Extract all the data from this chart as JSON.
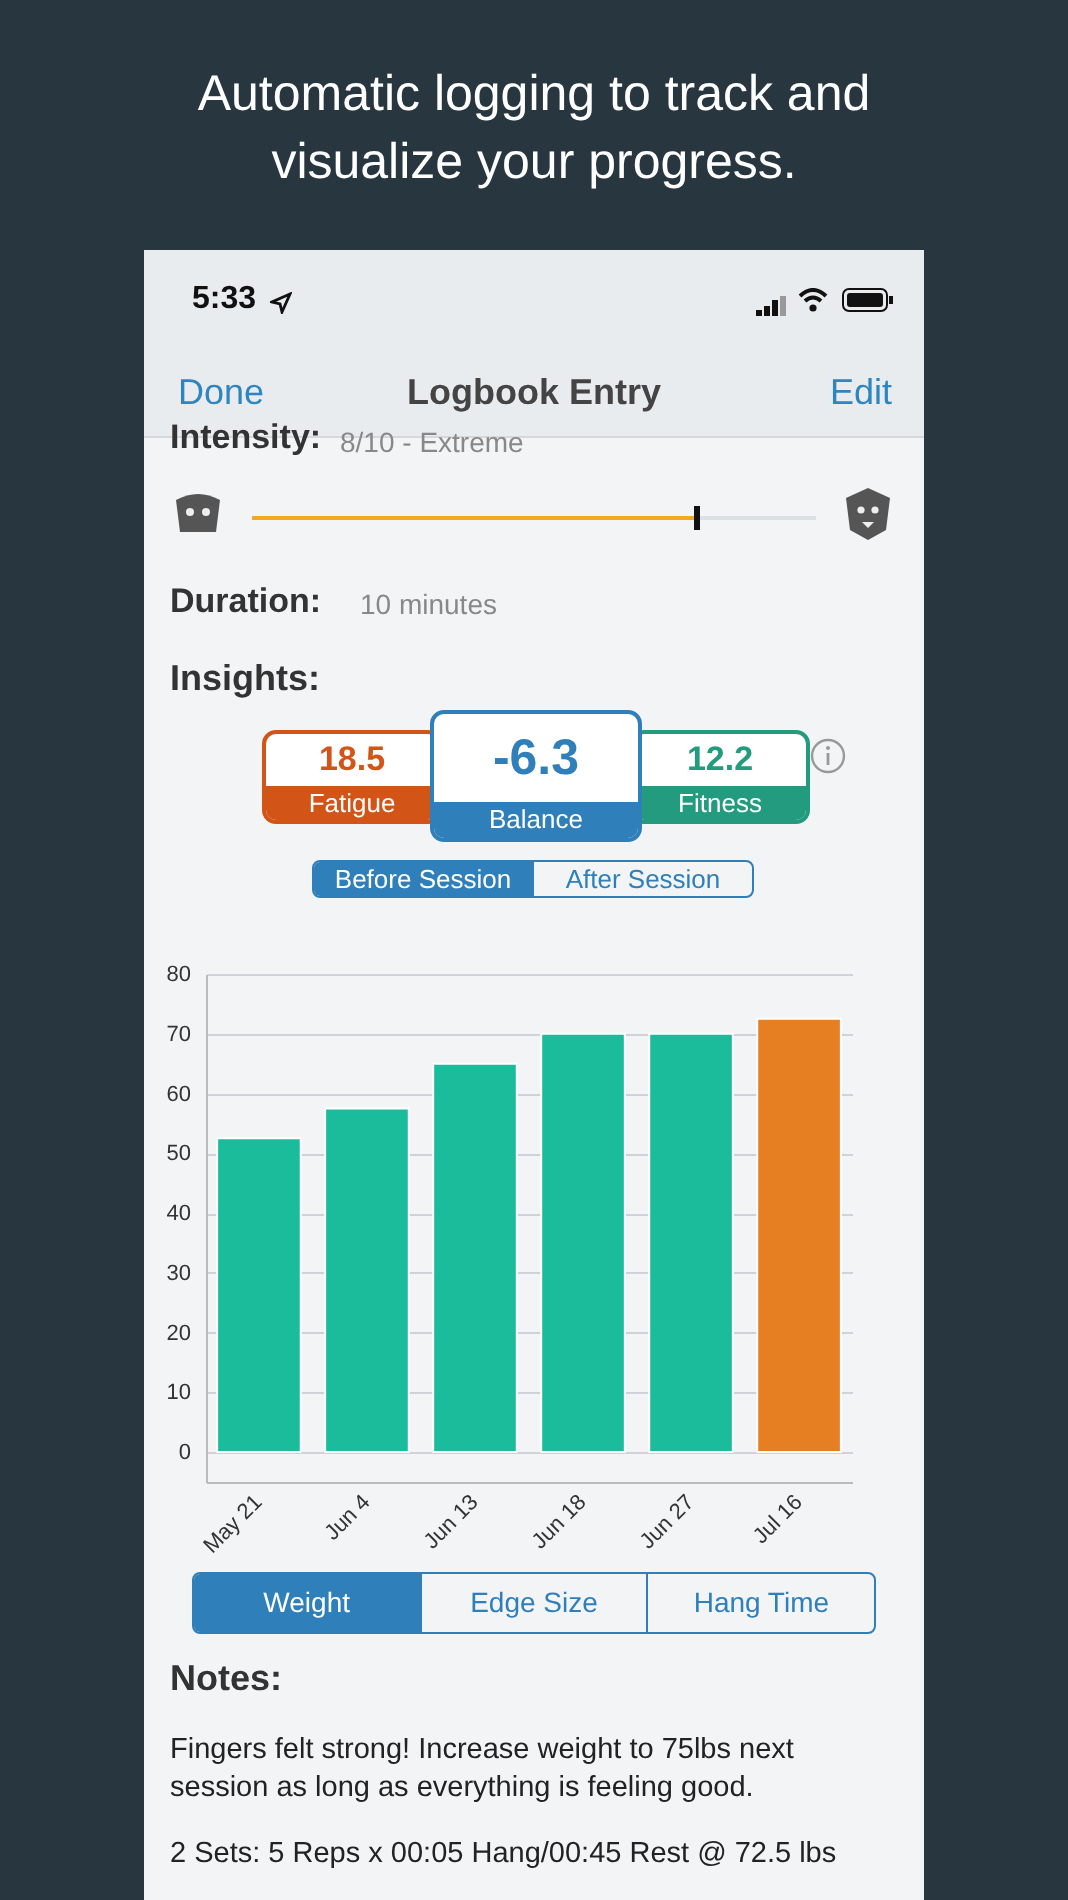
{
  "chart_data": {
    "type": "bar",
    "title": "Automatic logging to track and visualize your progress.",
    "categories": [
      "May 21",
      "Jun 4",
      "Jun 13",
      "Jun 18",
      "Jun 27",
      "Jul 16"
    ],
    "values": [
      52.5,
      57.5,
      65,
      70,
      70,
      72.5
    ],
    "colors": [
      "#1abc9c",
      "#1abc9c",
      "#1abc9c",
      "#1abc9c",
      "#1abc9c",
      "#e67e22"
    ],
    "ylim": [
      -5,
      80
    ],
    "yticks": [
      0,
      10,
      20,
      30,
      40,
      50,
      60,
      70,
      80
    ],
    "grid": "y",
    "annotations": [
      "5:33",
      "Done",
      "Logbook Entry",
      "Edit",
      "Intensity:",
      "8/10 - Extreme",
      "Duration:",
      "10 minutes",
      "Insights:",
      "18.5",
      "Fatigue",
      "-6.3",
      "Balance",
      "12.2",
      "Fitness",
      "Before Session",
      "After Session",
      "Weight",
      "Edge Size",
      "Hang Time",
      "Notes:",
      "Fingers felt strong! Increase weight to 75lbs next session as long as everything is feeling good.",
      "2 Sets: 5 Reps x 00:05 Hang/00:45 Rest @ 72.5 lbs"
    ]
  }
}
